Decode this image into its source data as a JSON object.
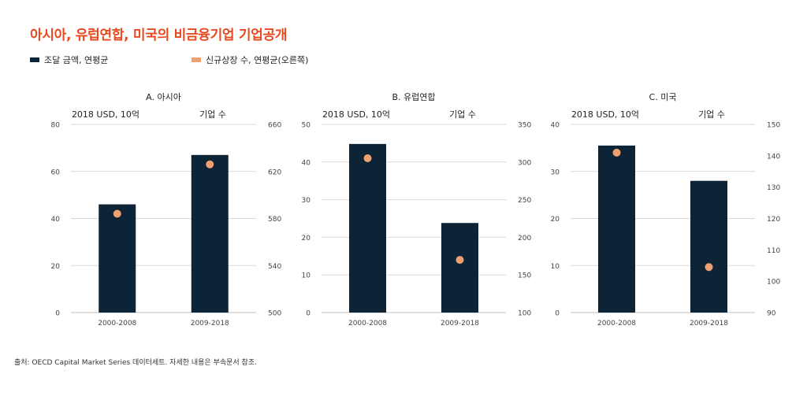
{
  "title": "아시아, 유럽연합, 미국의 비금융기업 기업공개",
  "legend": {
    "bar": "조달 금액, 연평균",
    "dot": "신규상장 수, 연평균(오른쪽)"
  },
  "colors": {
    "bar": "#0d2436",
    "dot": "#f0a070",
    "grid": "#d9d9d9",
    "title": "#e8491e"
  },
  "source": "출처: OECD Capital Market Series 데이터세트. 자세한 내용은 부속문서 참조.",
  "chart_data": [
    {
      "type": "bar",
      "title": "A. 아시아",
      "ylabel": "2018 USD, 10억",
      "y2label": "기업 수",
      "categories": [
        "2000-2008",
        "2009-2018"
      ],
      "series": [
        {
          "name": "조달 금액, 연평균",
          "axis": "left",
          "values": [
            46,
            67
          ]
        },
        {
          "name": "신규상장 수, 연평균(오른쪽)",
          "axis": "right",
          "values": [
            584,
            626
          ]
        }
      ],
      "ylim": [
        0,
        80
      ],
      "yticks": [
        0,
        20,
        40,
        60,
        80
      ],
      "y2lim": [
        500,
        660
      ],
      "y2ticks": [
        500,
        540,
        580,
        620,
        660
      ]
    },
    {
      "type": "bar",
      "title": "B. 유럽연합",
      "ylabel": "2018 USD, 10억",
      "y2label": "기업 수",
      "categories": [
        "2000-2008",
        "2009-2018"
      ],
      "series": [
        {
          "name": "조달 금액, 연평균",
          "axis": "left",
          "values": [
            44.8,
            23.8
          ]
        },
        {
          "name": "신규상장 수, 연평균(오른쪽)",
          "axis": "right",
          "values": [
            305,
            170
          ]
        }
      ],
      "ylim": [
        0,
        50
      ],
      "yticks": [
        0,
        10,
        20,
        30,
        40,
        50
      ],
      "y2lim": [
        100,
        350
      ],
      "y2ticks": [
        100,
        150,
        200,
        250,
        300,
        350
      ]
    },
    {
      "type": "bar",
      "title": "C. 미국",
      "ylabel": "2018 USD, 10억",
      "y2label": "기업 수",
      "categories": [
        "2000-2008",
        "2009-2018"
      ],
      "series": [
        {
          "name": "조달 금액, 연평균",
          "axis": "left",
          "values": [
            35.5,
            28
          ]
        },
        {
          "name": "신규상장 수, 연평균(오른쪽)",
          "axis": "right",
          "values": [
            141,
            104.5
          ]
        }
      ],
      "ylim": [
        0,
        40
      ],
      "yticks": [
        0,
        10,
        20,
        30,
        40
      ],
      "y2lim": [
        90,
        150
      ],
      "y2ticks": [
        90,
        100,
        110,
        120,
        130,
        140,
        150
      ]
    }
  ]
}
